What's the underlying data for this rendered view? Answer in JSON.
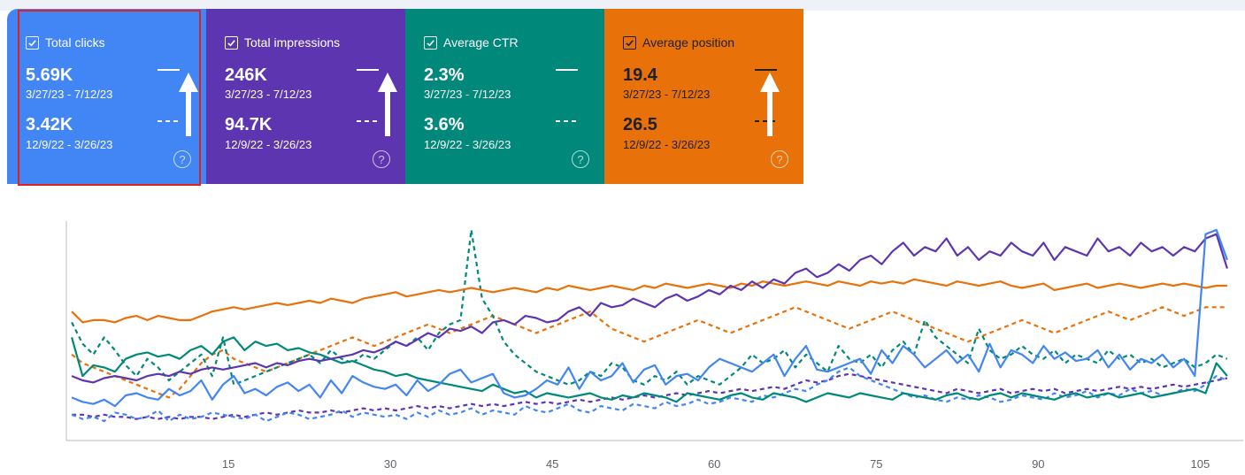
{
  "cards": [
    {
      "label": "Total clicks",
      "value_current": "5.69K",
      "range_current": "3/27/23 - 7/12/23",
      "value_previous": "3.42K",
      "range_previous": "12/9/22 - 3/26/23",
      "help": "?",
      "color": "#4285f4",
      "checked": true,
      "selected": true
    },
    {
      "label": "Total impressions",
      "value_current": "246K",
      "range_current": "3/27/23 - 7/12/23",
      "value_previous": "94.7K",
      "range_previous": "12/9/22 - 3/26/23",
      "help": "?",
      "color": "#5e35b1",
      "checked": true,
      "selected": false
    },
    {
      "label": "Average CTR",
      "value_current": "2.3%",
      "range_current": "3/27/23 - 7/12/23",
      "value_previous": "3.6%",
      "range_previous": "12/9/22 - 3/26/23",
      "help": "?",
      "color": "#00897b",
      "checked": true,
      "selected": false
    },
    {
      "label": "Average position",
      "value_current": "19.4",
      "range_current": "3/27/23 - 7/12/23",
      "value_previous": "26.5",
      "range_previous": "12/9/22 - 3/26/23",
      "help": "?",
      "color": "#e8710a",
      "checked": true,
      "selected": false
    }
  ],
  "chart_data": {
    "type": "line",
    "x_ticks": [
      "15",
      "30",
      "45",
      "60",
      "75",
      "90",
      "105"
    ],
    "x_tick_values": [
      15,
      30,
      45,
      60,
      75,
      90,
      105
    ],
    "xlim": [
      0,
      108
    ],
    "ylim": [
      0,
      100
    ],
    "series": [
      {
        "name": "Total clicks (current)",
        "color": "#4285f4",
        "dashed": false,
        "values": [
          20,
          18,
          17,
          19,
          16,
          21,
          22,
          20,
          19,
          24,
          21,
          23,
          28,
          19,
          26,
          30,
          22,
          24,
          21,
          25,
          27,
          23,
          26,
          20,
          28,
          22,
          30,
          27,
          25,
          24,
          26,
          21,
          28,
          23,
          26,
          31,
          33,
          27,
          29,
          31,
          22,
          20,
          21,
          24,
          28,
          26,
          34,
          24,
          32,
          28,
          30,
          36,
          27,
          33,
          35,
          26,
          30,
          31,
          28,
          34,
          38,
          36,
          34,
          32,
          36,
          40,
          30,
          38,
          44,
          33,
          32,
          34,
          36,
          38,
          31,
          42,
          36,
          44,
          40,
          34,
          38,
          42,
          36,
          40,
          32,
          45,
          34,
          42,
          40,
          36,
          44,
          38,
          41,
          37,
          38,
          42,
          34,
          40,
          33,
          38,
          36,
          40,
          34,
          38,
          30,
          96,
          98,
          84
        ]
      },
      {
        "name": "Total impressions (current)",
        "color": "#5e35b1",
        "dashed": false,
        "values": [
          30,
          28,
          27,
          29,
          30,
          29,
          28,
          30,
          31,
          30,
          32,
          31,
          33,
          34,
          33,
          34,
          35,
          36,
          34,
          36,
          35,
          37,
          38,
          37,
          38,
          39,
          40,
          42,
          41,
          43,
          46,
          44,
          47,
          50,
          48,
          52,
          51,
          53,
          50,
          55,
          56,
          54,
          58,
          57,
          55,
          56,
          60,
          62,
          58,
          64,
          62,
          63,
          66,
          64,
          62,
          66,
          68,
          65,
          67,
          70,
          68,
          72,
          70,
          74,
          71,
          75,
          73,
          78,
          80,
          76,
          78,
          82,
          79,
          84,
          86,
          82,
          88,
          92,
          86,
          90,
          88,
          94,
          86,
          90,
          84,
          88,
          86,
          92,
          88,
          86,
          92,
          84,
          90,
          88,
          86,
          94,
          88,
          90,
          86,
          92,
          88,
          90,
          86,
          90,
          88,
          94,
          96,
          80
        ]
      },
      {
        "name": "Average CTR (current)",
        "color": "#00897b",
        "dashed": false,
        "values": [
          48,
          30,
          35,
          34,
          32,
          38,
          40,
          41,
          39,
          40,
          38,
          42,
          44,
          40,
          46,
          48,
          42,
          46,
          44,
          45,
          42,
          43,
          41,
          40,
          38,
          36,
          37,
          35,
          33,
          32,
          30,
          31,
          29,
          28,
          27,
          26,
          25,
          24,
          23,
          26,
          24,
          22,
          23,
          20,
          22,
          21,
          20,
          21,
          22,
          20,
          19,
          21,
          20,
          22,
          21,
          20,
          18,
          22,
          21,
          20,
          19,
          21,
          22,
          20,
          19,
          22,
          21,
          20,
          18,
          20,
          22,
          21,
          20,
          22,
          21,
          20,
          19,
          22,
          21,
          20,
          19,
          21,
          22,
          20,
          19,
          21,
          22,
          20,
          22,
          21,
          20,
          19,
          21,
          22,
          20,
          21,
          22,
          20,
          21,
          22,
          20,
          21,
          22,
          23,
          24,
          22,
          36,
          30
        ]
      },
      {
        "name": "Average position (current)",
        "color": "#e8710a",
        "dashed": false,
        "values": [
          60,
          55,
          56,
          56,
          55,
          57,
          58,
          56,
          58,
          57,
          56,
          56,
          58,
          60,
          61,
          62,
          61,
          62,
          63,
          64,
          63,
          64,
          65,
          64,
          66,
          65,
          64,
          66,
          67,
          68,
          69,
          67,
          68,
          69,
          70,
          69,
          70,
          71,
          70,
          69,
          70,
          71,
          70,
          69,
          71,
          70,
          72,
          71,
          70,
          71,
          72,
          71,
          70,
          72,
          71,
          73,
          72,
          71,
          72,
          73,
          72,
          71,
          73,
          72,
          74,
          73,
          72,
          73,
          74,
          73,
          72,
          74,
          73,
          72,
          74,
          73,
          74,
          73,
          75,
          74,
          73,
          72,
          74,
          73,
          72,
          73,
          74,
          72,
          71,
          72,
          73,
          70,
          71,
          72,
          73,
          71,
          72,
          73,
          72,
          71,
          72,
          73,
          72,
          73,
          72,
          71,
          72,
          72
        ]
      },
      {
        "name": "Total clicks (previous)",
        "color": "#4285f4",
        "dashed": true,
        "values": [
          12,
          10,
          11,
          9,
          13,
          12,
          10,
          11,
          14,
          9,
          12,
          10,
          11,
          13,
          12,
          11,
          10,
          12,
          9,
          11,
          13,
          12,
          10,
          11,
          12,
          14,
          11,
          13,
          12,
          11,
          12,
          10,
          13,
          11,
          14,
          12,
          13,
          15,
          12,
          14,
          13,
          12,
          16,
          14,
          13,
          15,
          17,
          14,
          13,
          16,
          15,
          14,
          17,
          16,
          15,
          18,
          16,
          17,
          19,
          17,
          18,
          20,
          19,
          18,
          21,
          20,
          22,
          24,
          23,
          26,
          28,
          32,
          34,
          30,
          28,
          26,
          24,
          22,
          20,
          21,
          19,
          18,
          20,
          19,
          21,
          20,
          18,
          19,
          21,
          20,
          19,
          22,
          20,
          21,
          23,
          20,
          22,
          21,
          24,
          22,
          23,
          21,
          22,
          24,
          23,
          26,
          30,
          28
        ]
      },
      {
        "name": "Total impressions (previous)",
        "color": "#5e35b1",
        "dashed": true,
        "values": [
          12,
          12,
          11,
          12,
          11,
          11,
          10,
          11,
          10,
          11,
          10,
          11,
          11,
          10,
          11,
          12,
          11,
          12,
          13,
          12,
          13,
          14,
          13,
          13,
          14,
          13,
          14,
          15,
          14,
          15,
          14,
          15,
          16,
          15,
          16,
          15,
          16,
          17,
          16,
          17,
          16,
          17,
          18,
          17,
          18,
          17,
          18,
          19,
          18,
          19,
          20,
          19,
          20,
          21,
          20,
          21,
          22,
          21,
          22,
          23,
          22,
          23,
          24,
          23,
          24,
          25,
          24,
          26,
          28,
          27,
          28,
          30,
          31,
          30,
          29,
          28,
          27,
          26,
          25,
          24,
          23,
          22,
          24,
          23,
          22,
          23,
          24,
          22,
          23,
          24,
          23,
          24,
          22,
          23,
          24,
          23,
          24,
          25,
          24,
          25,
          24,
          25,
          26,
          25,
          26,
          27,
          28,
          29
        ]
      },
      {
        "name": "Average CTR (previous)",
        "color": "#00897b",
        "dashed": true,
        "values": [
          55,
          45,
          40,
          48,
          42,
          35,
          30,
          38,
          34,
          28,
          32,
          36,
          40,
          30,
          48,
          26,
          28,
          30,
          32,
          34,
          36,
          38,
          40,
          36,
          42,
          38,
          36,
          40,
          38,
          42,
          46,
          44,
          48,
          42,
          50,
          54,
          56,
          98,
          66,
          58,
          46,
          40,
          36,
          32,
          30,
          28,
          26,
          28,
          32,
          30,
          36,
          34,
          28,
          26,
          30,
          28,
          32,
          26,
          30,
          28,
          26,
          30,
          34,
          40,
          36,
          38,
          42,
          34,
          40,
          36,
          32,
          44,
          38,
          36,
          40,
          34,
          42,
          46,
          40,
          56,
          48,
          44,
          40,
          36,
          52,
          42,
          38,
          40,
          44,
          40,
          38,
          42,
          36,
          40,
          38,
          36,
          42,
          38,
          40,
          36,
          38,
          34,
          36,
          38,
          34,
          36,
          40,
          38
        ]
      },
      {
        "name": "Average position (previous)",
        "color": "#e8710a",
        "dashed": true,
        "values": [
          40,
          36,
          34,
          32,
          30,
          28,
          26,
          24,
          22,
          20,
          24,
          30,
          36,
          40,
          42,
          38,
          36,
          34,
          32,
          34,
          36,
          38,
          40,
          42,
          44,
          46,
          48,
          46,
          44,
          46,
          48,
          50,
          52,
          54,
          52,
          50,
          52,
          54,
          56,
          58,
          56,
          54,
          52,
          50,
          52,
          54,
          56,
          58,
          60,
          56,
          52,
          50,
          48,
          46,
          48,
          50,
          52,
          54,
          56,
          54,
          52,
          50,
          52,
          54,
          56,
          58,
          60,
          62,
          60,
          58,
          56,
          54,
          52,
          54,
          56,
          58,
          60,
          58,
          56,
          54,
          52,
          50,
          48,
          46,
          48,
          50,
          52,
          54,
          56,
          54,
          52,
          50,
          52,
          54,
          56,
          58,
          60,
          58,
          56,
          58,
          60,
          62,
          60,
          58,
          60,
          62,
          62,
          62
        ]
      }
    ]
  }
}
